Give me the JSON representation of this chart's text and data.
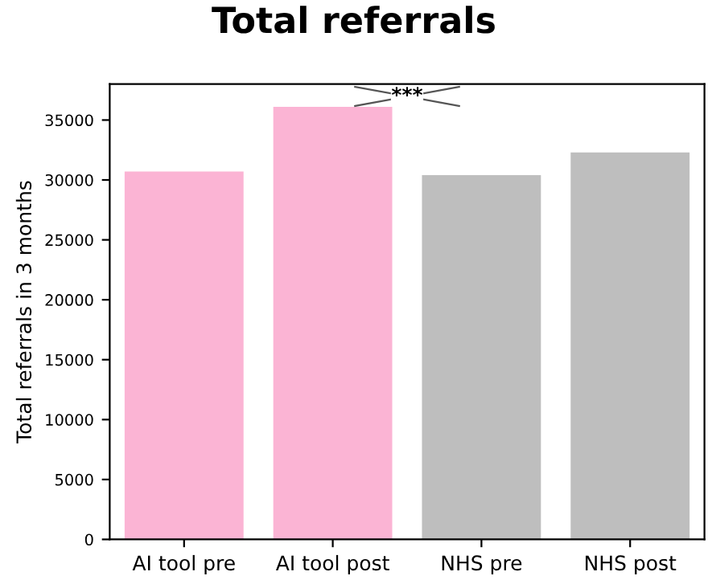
{
  "chart_data": {
    "type": "bar",
    "title": "Total referrals",
    "ylabel": "Total referrals in 3 months",
    "categories": [
      "AI tool pre",
      "AI tool post",
      "NHS pre",
      "NHS post"
    ],
    "values": [
      30700,
      36100,
      30400,
      32300
    ],
    "colors": [
      "#fbb4d4",
      "#fbb4d4",
      "#bebebe",
      "#bebebe"
    ],
    "ylim": [
      0,
      38000
    ],
    "yticks": [
      0,
      5000,
      10000,
      15000,
      20000,
      25000,
      30000,
      35000
    ],
    "grid": false,
    "annotations": [
      "***"
    ]
  }
}
